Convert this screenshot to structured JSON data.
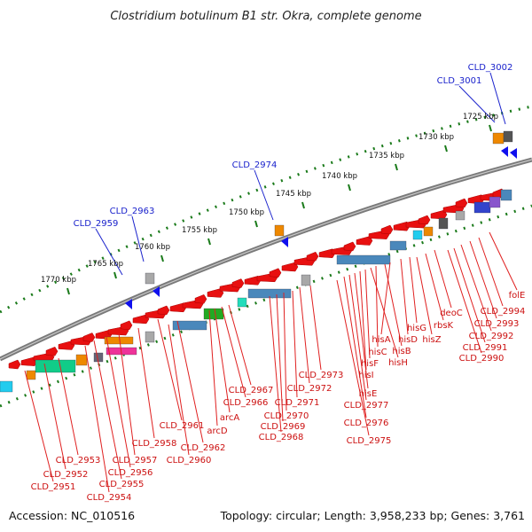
{
  "title": "Clostridium botulinum B1 str. Okra, complete genome",
  "footer": {
    "accession": "Accession: NC_010516",
    "topology": "Topology: circular; Length: 3,958,233 bp; Genes: 3,761"
  },
  "kbp_ticks": [
    "1725 kbp",
    "1730 kbp",
    "1735 kbp",
    "1740 kbp",
    "1745 kbp",
    "1750 kbp",
    "1755 kbp",
    "1760 kbp",
    "1765 kbp",
    "1770 kbp"
  ],
  "outer_labels": [
    "CLD_3002",
    "CLD_3001",
    "CLD_2974",
    "CLD_2963",
    "CLD_2959"
  ],
  "inner_labels": [
    "folE",
    "CLD_2994",
    "CLD_2993",
    "CLD_2992",
    "CLD_2991",
    "CLD_2990",
    "deoC",
    "rbsK",
    "hisG",
    "hisZ",
    "hisD",
    "hisA",
    "hisB",
    "hisC",
    "hisH",
    "hisF",
    "hisI",
    "hisE",
    "CLD_2977",
    "CLD_2976",
    "CLD_2975",
    "CLD_2973",
    "CLD_2972",
    "CLD_2971",
    "CLD_2970",
    "CLD_2969",
    "CLD_2968",
    "CLD_2967",
    "CLD_2966",
    "arcA",
    "arcD",
    "CLD_2961",
    "CLD_2962",
    "CLD_2960",
    "CLD_2958",
    "CLD_2957",
    "CLD_2956",
    "CLD_2955",
    "CLD_2954",
    "CLD_2953",
    "CLD_2952",
    "CLD_2951"
  ],
  "colors": {
    "backbone": "#7a7a7a",
    "forward_gene": "#e81010",
    "reverse_gene": "#1010ee",
    "dot_track": "#1a7a1a",
    "cog_blue": "#4a88bb",
    "cog_green": "#11cc88",
    "cog_orange": "#ee8800",
    "cog_grey": "#a8a8a8"
  }
}
